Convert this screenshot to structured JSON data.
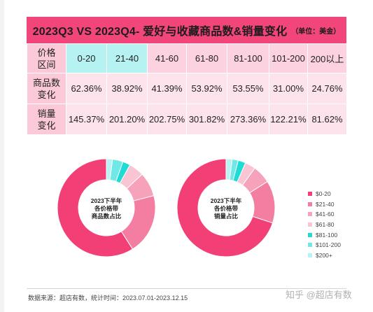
{
  "banner": {
    "title": "2023Q3 VS 2023Q4- 爱好与收藏商品数&销量变化",
    "unit": "（单位：美金）"
  },
  "table": {
    "header_label": [
      "价格",
      "区间"
    ],
    "rows": [
      {
        "label": [
          "商品数",
          "变化"
        ],
        "values": [
          "62.36%",
          "38.92%",
          "41.39%",
          "53.92%",
          "53.55%",
          "31.00%",
          "24.76%"
        ]
      },
      {
        "label": [
          "销量",
          "变化"
        ],
        "values": [
          "145.37%",
          "201.20%",
          "202.75%",
          "301.82%",
          "273.36%",
          "122.21%",
          "81.62%"
        ]
      }
    ]
  },
  "chart_data": [
    {
      "type": "pie",
      "title": "2023下半年 各价格带 商品数占比",
      "categories": [
        "$0-20",
        "$21-40",
        "$41-60",
        "$61-80",
        "$81-100",
        "$101-200",
        "$200+"
      ],
      "values": [
        59,
        20,
        8,
        5,
        2.5,
        3.5,
        2
      ]
    },
    {
      "type": "pie",
      "title": "2023下半年 各价格带 销量占比",
      "categories": [
        "$0-20",
        "$21-40",
        "$41-60",
        "$61-80",
        "$81-100",
        "$101-200",
        "$200+"
      ],
      "values": [
        70,
        14,
        6,
        3.5,
        2.5,
        2,
        2
      ]
    }
  ],
  "column_headers": [
    "0-20",
    "21-40",
    "41-60",
    "61-80",
    "81-100",
    "101-200",
    "200以上"
  ],
  "donut_labels": {
    "left": [
      "2023下半年",
      "各价格带",
      "商品数占比"
    ],
    "right": [
      "2023下半年",
      "各价格带",
      "销量占比"
    ]
  },
  "legend": [
    {
      "label": "$0-20",
      "color": "#f23f76"
    },
    {
      "label": "$21-40",
      "color": "#f37ea1"
    },
    {
      "label": "$41-60",
      "color": "#f6a2bb"
    },
    {
      "label": "$61-80",
      "color": "#f9c4d3"
    },
    {
      "label": "$81-100",
      "color": "#1edbd6"
    },
    {
      "label": "$101-200",
      "color": "#6fe8e6"
    },
    {
      "label": "$200+",
      "color": "#b8f3f3"
    }
  ],
  "footer": {
    "source": "数据来源：超店有数，统计时间：2023.07.01-2023.12.15",
    "watermark": "知乎 @超店有数"
  }
}
